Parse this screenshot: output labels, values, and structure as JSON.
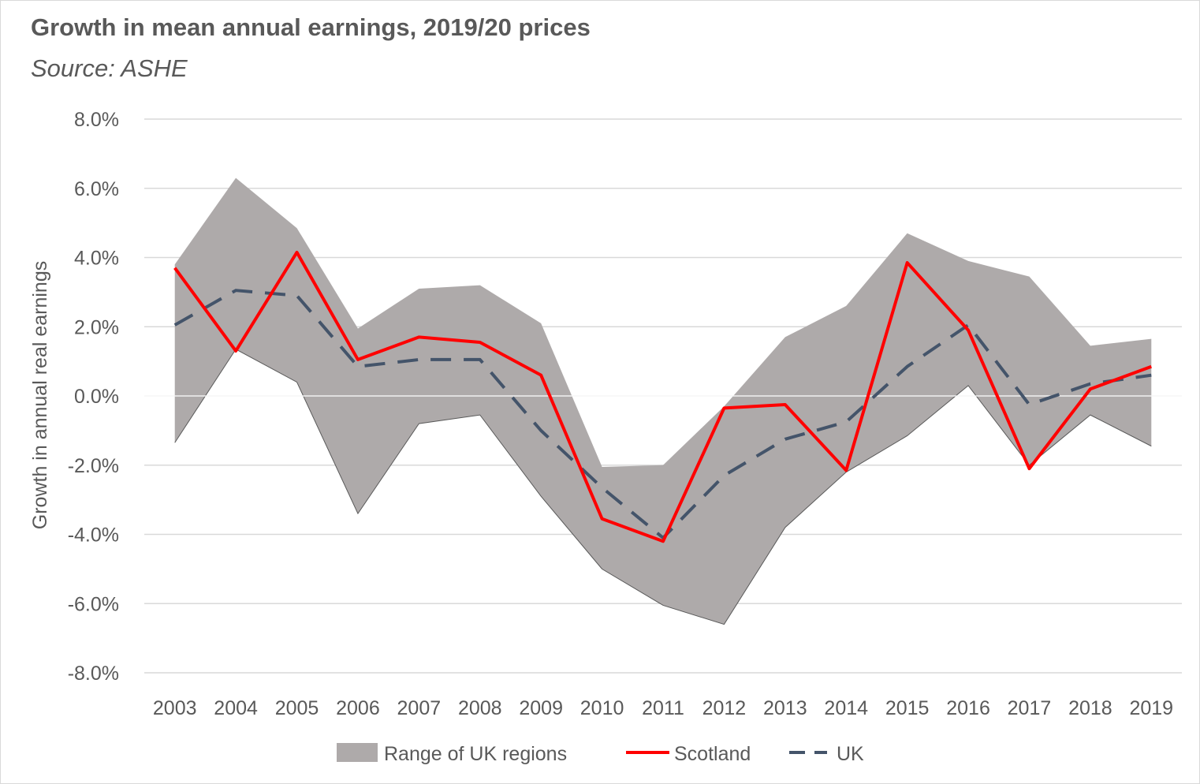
{
  "chart_data": {
    "type": "line",
    "title": "Growth in mean annual earnings, 2019/20 prices",
    "subtitle": "Source: ASHE",
    "ylabel": "Growth in annual real earnings",
    "xlabel": "",
    "ylim": [
      -8.0,
      8.0
    ],
    "y_ticks": [
      "8.0%",
      "6.0%",
      "4.0%",
      "2.0%",
      "0.0%",
      "-2.0%",
      "-4.0%",
      "-6.0%",
      "-8.0%"
    ],
    "y_tick_values": [
      8,
      6,
      4,
      2,
      0,
      -2,
      -4,
      -6,
      -8
    ],
    "grid": "horizontal",
    "legend_position": "bottom",
    "categories": [
      "2003",
      "2004",
      "2005",
      "2006",
      "2007",
      "2008",
      "2009",
      "2010",
      "2011",
      "2012",
      "2013",
      "2014",
      "2015",
      "2016",
      "2017",
      "2018",
      "2019"
    ],
    "range": {
      "name": "Range of UK regions",
      "color": "#aeaaaa",
      "max": [
        3.8,
        6.3,
        4.85,
        1.95,
        3.1,
        3.2,
        2.1,
        -2.05,
        -2.0,
        -0.3,
        1.7,
        2.6,
        4.7,
        3.9,
        3.45,
        1.45,
        1.65
      ],
      "min": [
        -1.35,
        1.35,
        0.4,
        -3.4,
        -0.8,
        -0.55,
        -2.9,
        -5.0,
        -6.05,
        -6.6,
        -3.8,
        -2.2,
        -1.15,
        0.3,
        -2.0,
        -0.55,
        -1.45
      ]
    },
    "series": [
      {
        "name": "Scotland",
        "color": "#ff0000",
        "style": "solid",
        "values": [
          3.7,
          1.3,
          4.15,
          1.05,
          1.7,
          1.55,
          0.6,
          -3.55,
          -4.2,
          -0.35,
          -0.25,
          -2.15,
          3.85,
          1.9,
          -2.1,
          0.2,
          0.85
        ]
      },
      {
        "name": "UK",
        "color": "#44546a",
        "style": "dashed",
        "values": [
          2.05,
          3.05,
          2.9,
          0.85,
          1.05,
          1.05,
          -1.0,
          -2.65,
          -4.1,
          -2.3,
          -1.25,
          -0.75,
          0.85,
          2.05,
          -0.25,
          0.35,
          0.6
        ]
      }
    ]
  }
}
